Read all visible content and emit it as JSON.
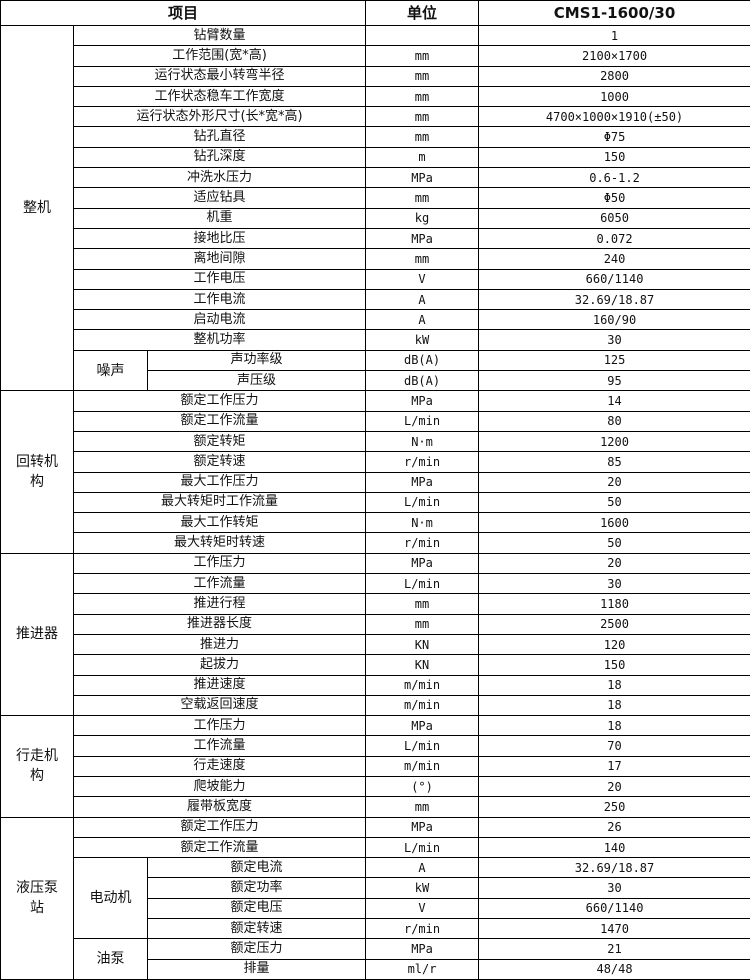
{
  "header": {
    "item": "项目",
    "unit": "单位",
    "value": "CMS1-1600/30"
  },
  "groups": [
    {
      "name": "整机",
      "rows": [
        {
          "item": "钻臂数量",
          "unit": "",
          "value": "1"
        },
        {
          "item": "工作范围(宽*高)",
          "unit": "mm",
          "value": "2100×1700"
        },
        {
          "item": "运行状态最小转弯半径",
          "unit": "mm",
          "value": "2800"
        },
        {
          "item": "工作状态稳车工作宽度",
          "unit": "mm",
          "value": "1000"
        },
        {
          "item": "运行状态外形尺寸(长*宽*高)",
          "unit": "mm",
          "value": "4700×1000×1910(±50)"
        },
        {
          "item": "钻孔直径",
          "unit": "mm",
          "value": "Φ75"
        },
        {
          "item": "钻孔深度",
          "unit": "m",
          "value": "150"
        },
        {
          "item": "冲洗水压力",
          "unit": "MPa",
          "value": "0.6-1.2"
        },
        {
          "item": "适应钻具",
          "unit": "mm",
          "value": "Φ50"
        },
        {
          "item": "机重",
          "unit": "kg",
          "value": "6050"
        },
        {
          "item": "接地比压",
          "unit": "MPa",
          "value": "0.072"
        },
        {
          "item": "离地间隙",
          "unit": "mm",
          "value": "240"
        },
        {
          "item": "工作电压",
          "unit": "V",
          "value": "660/1140"
        },
        {
          "item": "工作电流",
          "unit": "A",
          "value": "32.69/18.87"
        },
        {
          "item": "启动电流",
          "unit": "A",
          "value": "160/90"
        },
        {
          "item": "整机功率",
          "unit": "kW",
          "value": "30"
        },
        {
          "sub": "噪声",
          "item": "声功率级",
          "unit": "dB(A)",
          "value": "125"
        },
        {
          "sub": "噪声",
          "item": "声压级",
          "unit": "dB(A)",
          "value": "95"
        }
      ]
    },
    {
      "name": "回转机构",
      "rows": [
        {
          "item": "额定工作压力",
          "unit": "MPa",
          "value": "14"
        },
        {
          "item": "额定工作流量",
          "unit": "L/min",
          "value": "80"
        },
        {
          "item": "额定转矩",
          "unit": "N·m",
          "value": "1200"
        },
        {
          "item": "额定转速",
          "unit": "r/min",
          "value": "85"
        },
        {
          "item": "最大工作压力",
          "unit": "MPa",
          "value": "20"
        },
        {
          "item": "最大转矩时工作流量",
          "unit": "L/min",
          "value": "50"
        },
        {
          "item": "最大工作转矩",
          "unit": "N·m",
          "value": "1600"
        },
        {
          "item": "最大转矩时转速",
          "unit": "r/min",
          "value": "50"
        }
      ]
    },
    {
      "name": "推进器",
      "rows": [
        {
          "item": "工作压力",
          "unit": "MPa",
          "value": "20"
        },
        {
          "item": "工作流量",
          "unit": "L/min",
          "value": "30"
        },
        {
          "item": "推进行程",
          "unit": "mm",
          "value": "1180"
        },
        {
          "item": "推进器长度",
          "unit": "mm",
          "value": "2500"
        },
        {
          "item": "推进力",
          "unit": "KN",
          "value": "120"
        },
        {
          "item": "起拔力",
          "unit": "KN",
          "value": "150"
        },
        {
          "item": "推进速度",
          "unit": "m/min",
          "value": "18"
        },
        {
          "item": "空载返回速度",
          "unit": "m/min",
          "value": "18"
        }
      ]
    },
    {
      "name": "行走机构",
      "rows": [
        {
          "item": "工作压力",
          "unit": "MPa",
          "value": "18"
        },
        {
          "item": "工作流量",
          "unit": "L/min",
          "value": "70"
        },
        {
          "item": "行走速度",
          "unit": "m/min",
          "value": "17"
        },
        {
          "item": "爬坡能力",
          "unit": "(°)",
          "value": "20"
        },
        {
          "item": "履带板宽度",
          "unit": "mm",
          "value": "250"
        }
      ]
    },
    {
      "name": "液压泵站",
      "rows": [
        {
          "item": "额定工作压力",
          "unit": "MPa",
          "value": "26"
        },
        {
          "item": "额定工作流量",
          "unit": "L/min",
          "value": "140"
        },
        {
          "sub": "电动机",
          "item": "额定电流",
          "unit": "A",
          "value": "32.69/18.87"
        },
        {
          "sub": "电动机",
          "item": "额定功率",
          "unit": "kW",
          "value": "30"
        },
        {
          "sub": "电动机",
          "item": "额定电压",
          "unit": "V",
          "value": "660/1140"
        },
        {
          "sub": "电动机",
          "item": "额定转速",
          "unit": "r/min",
          "value": "1470"
        },
        {
          "sub": "油泵",
          "item": "额定压力",
          "unit": "MPa",
          "value": "21"
        },
        {
          "sub": "油泵",
          "item": "排量",
          "unit": "ml/r",
          "value": "48/48"
        }
      ]
    }
  ]
}
